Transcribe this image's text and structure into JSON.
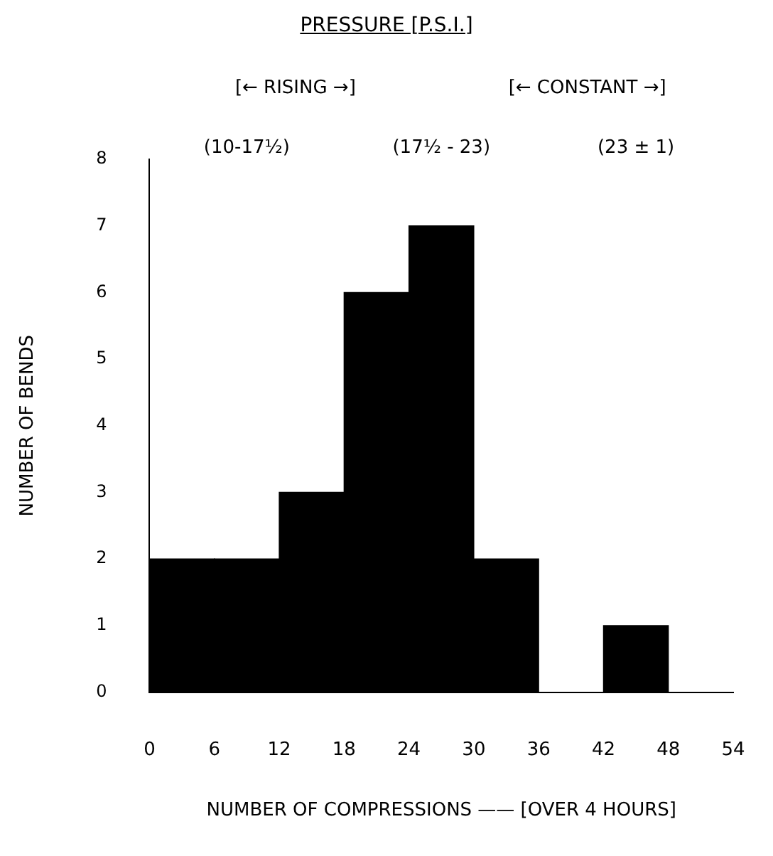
{
  "chart_data": {
    "type": "histogram",
    "title": "PRESSURE [P.S.I.]",
    "xlabel": "NUMBER OF COMPRESSIONS —— [OVER 4 HOURS]",
    "ylabel": "NUMBER OF BENDS",
    "bins": [
      0,
      6,
      12,
      18,
      24,
      30,
      36,
      42,
      48,
      54
    ],
    "values": [
      2,
      2,
      3,
      6,
      7,
      2,
      0,
      1,
      0
    ],
    "color": "#000000",
    "xlim": [
      0,
      54
    ],
    "xticks": [
      0,
      6,
      12,
      18,
      24,
      30,
      36,
      42,
      48,
      54
    ],
    "ylim": [
      0,
      8
    ],
    "yticks": [
      0,
      1,
      2,
      3,
      4,
      5,
      6,
      7,
      8
    ],
    "grid": false,
    "legend": false,
    "annotations": [
      "[← RISING →]",
      "[← CONSTANT →]",
      "(10-17½)",
      "(17½ - 23)",
      "(23 ± 1)"
    ]
  }
}
